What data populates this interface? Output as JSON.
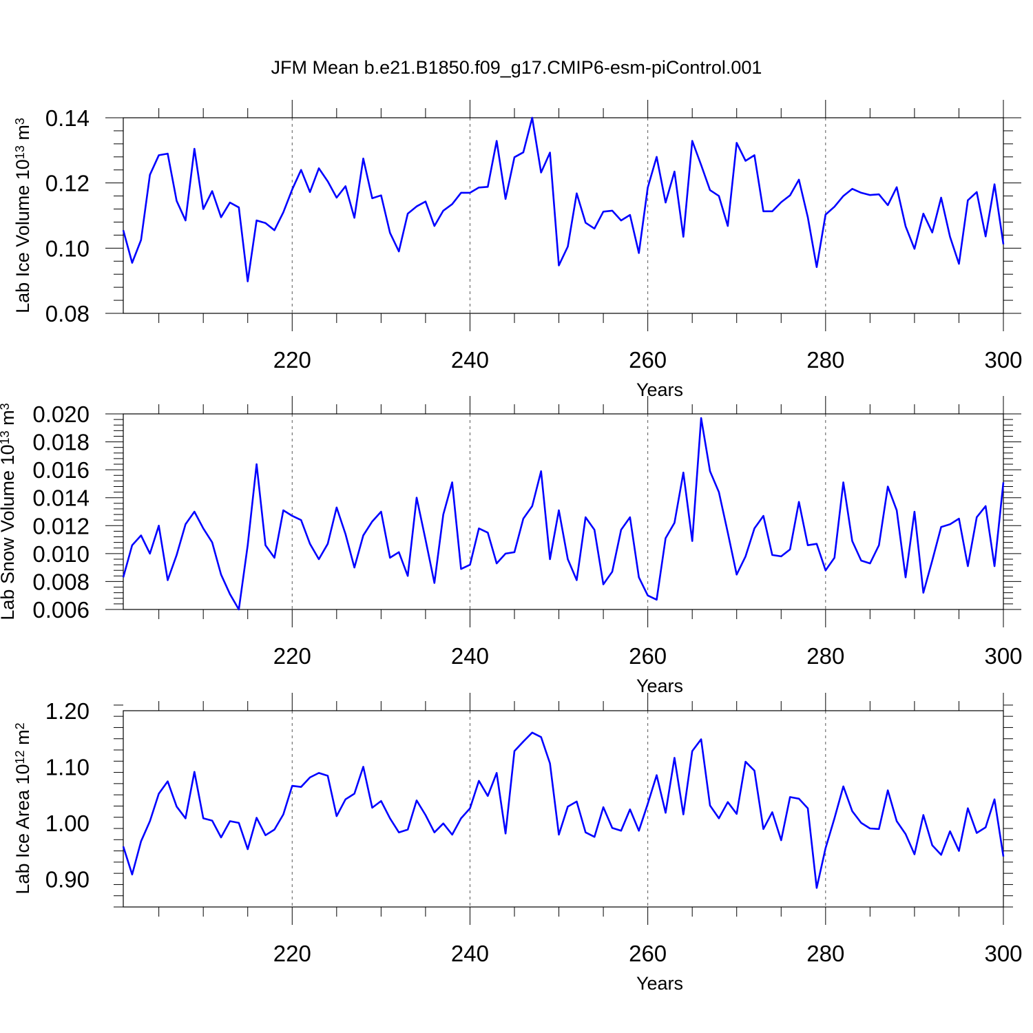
{
  "title": "JFM Mean b.e21.B1850.f09_g17.CMIP6-esm-piControl.001",
  "colors": {
    "line": "#0000ff",
    "axis": "#000000",
    "grid": "#555555"
  },
  "chart_data": [
    {
      "type": "line",
      "xlabel": "Years",
      "ylabel_main": "Lab Ice Volume 10",
      "ylabel_exp": "13",
      "ylabel_unit": " m",
      "ylabel_unit_exp": "3",
      "xlim": [
        201,
        300
      ],
      "ylim": [
        0.08,
        0.14
      ],
      "xticks": [
        220,
        240,
        260,
        280,
        300
      ],
      "xtick_labels": [
        "220",
        "240",
        "260",
        "280",
        "300"
      ],
      "yticks": [
        0.08,
        0.1,
        0.12,
        0.14
      ],
      "ytick_labels": [
        "0.08",
        "0.10",
        "0.12",
        "0.14"
      ],
      "grid_x": [
        220,
        240,
        260,
        280
      ],
      "x_start": 201,
      "values": [
        0.1055,
        0.0955,
        0.1025,
        0.1225,
        0.1285,
        0.129,
        0.1145,
        0.1085,
        0.1305,
        0.112,
        0.1175,
        0.1095,
        0.114,
        0.1125,
        0.0898,
        0.1085,
        0.1077,
        0.1055,
        0.111,
        0.118,
        0.124,
        0.1172,
        0.1245,
        0.1205,
        0.1155,
        0.119,
        0.1093,
        0.1275,
        0.1153,
        0.1162,
        0.1047,
        0.099,
        0.1106,
        0.1128,
        0.1143,
        0.1068,
        0.1115,
        0.1135,
        0.117,
        0.117,
        0.1186,
        0.1188,
        0.1329,
        0.1151,
        0.1279,
        0.1294,
        0.14,
        0.1232,
        0.1293,
        0.0947,
        0.1005,
        0.1168,
        0.1078,
        0.106,
        0.1112,
        0.1115,
        0.1085,
        0.1102,
        0.0985,
        0.1186,
        0.128,
        0.114,
        0.1235,
        0.1035,
        0.1329,
        0.1255,
        0.1178,
        0.116,
        0.1068,
        0.1323,
        0.1268,
        0.1285,
        0.1113,
        0.1113,
        0.1141,
        0.1162,
        0.121,
        0.1095,
        0.0942,
        0.1103,
        0.1127,
        0.116,
        0.1182,
        0.117,
        0.1163,
        0.1165,
        0.1132,
        0.1187,
        0.1067,
        0.0998,
        0.1106,
        0.1048,
        0.1155,
        0.1035,
        0.0952,
        0.1147,
        0.1172,
        0.1036,
        0.1196,
        0.1012
      ]
    },
    {
      "type": "line",
      "xlabel": "Years",
      "ylabel_main": "Lab Snow Volume 10",
      "ylabel_exp": "13",
      "ylabel_unit": " m",
      "ylabel_unit_exp": "3",
      "xlim": [
        201,
        300
      ],
      "ylim": [
        0.006,
        0.02
      ],
      "xticks": [
        220,
        240,
        260,
        280,
        300
      ],
      "xtick_labels": [
        "220",
        "240",
        "260",
        "280",
        "300"
      ],
      "yticks": [
        0.006,
        0.008,
        0.01,
        0.012,
        0.014,
        0.016,
        0.018,
        0.02
      ],
      "ytick_labels": [
        "0.006",
        "0.008",
        "0.010",
        "0.012",
        "0.014",
        "0.016",
        "0.018",
        "0.020"
      ],
      "grid_x": [
        220,
        240,
        260,
        280
      ],
      "x_start": 201,
      "values": [
        0.0083,
        0.0106,
        0.0113,
        0.01,
        0.012,
        0.0081,
        0.0099,
        0.0121,
        0.013,
        0.0118,
        0.0108,
        0.0085,
        0.0071,
        0.006,
        0.0106,
        0.0164,
        0.0106,
        0.0097,
        0.0131,
        0.0127,
        0.0124,
        0.0107,
        0.0096,
        0.0107,
        0.0133,
        0.0114,
        0.009,
        0.0113,
        0.0123,
        0.013,
        0.0097,
        0.0101,
        0.0084,
        0.014,
        0.011,
        0.0079,
        0.0128,
        0.0151,
        0.0089,
        0.0092,
        0.0118,
        0.0115,
        0.0093,
        0.01,
        0.0101,
        0.0125,
        0.0134,
        0.0159,
        0.0096,
        0.0131,
        0.0096,
        0.0081,
        0.0126,
        0.0117,
        0.0078,
        0.0087,
        0.0117,
        0.0126,
        0.0083,
        0.007,
        0.0067,
        0.0111,
        0.0122,
        0.0158,
        0.0109,
        0.0197,
        0.0159,
        0.0144,
        0.0115,
        0.0085,
        0.0098,
        0.0118,
        0.0127,
        0.0099,
        0.0098,
        0.0103,
        0.0137,
        0.0106,
        0.0107,
        0.0088,
        0.0097,
        0.0151,
        0.0109,
        0.0095,
        0.0093,
        0.0106,
        0.0148,
        0.0131,
        0.0083,
        0.013,
        0.0072,
        0.0095,
        0.0119,
        0.0121,
        0.0125,
        0.0091,
        0.0126,
        0.0134,
        0.0091,
        0.0151
      ]
    },
    {
      "type": "line",
      "xlabel": "Years",
      "ylabel_main": "Lab Ice Area 10",
      "ylabel_exp": "12",
      "ylabel_unit": " m",
      "ylabel_unit_exp": "2",
      "xlim": [
        201,
        300
      ],
      "ylim": [
        0.85,
        1.2
      ],
      "xticks": [
        220,
        240,
        260,
        280,
        300
      ],
      "xtick_labels": [
        "220",
        "240",
        "260",
        "280",
        "300"
      ],
      "yticks": [
        0.9,
        1.0,
        1.1,
        1.2
      ],
      "ytick_labels": [
        "0.90",
        "1.00",
        "1.10",
        "1.20"
      ],
      "grid_x": [
        220,
        240,
        260,
        280
      ],
      "x_start": 201,
      "values": [
        0.958,
        0.908,
        0.967,
        1.003,
        1.052,
        1.074,
        1.029,
        1.008,
        1.091,
        1.008,
        1.004,
        0.974,
        1.003,
        1.0,
        0.953,
        1.009,
        0.978,
        0.988,
        1.015,
        1.066,
        1.064,
        1.081,
        1.089,
        1.084,
        1.012,
        1.042,
        1.052,
        1.1,
        1.027,
        1.039,
        1.008,
        0.983,
        0.988,
        1.04,
        1.014,
        0.983,
        0.999,
        0.979,
        1.008,
        1.026,
        1.075,
        1.048,
        1.089,
        0.981,
        1.128,
        1.145,
        1.161,
        1.153,
        1.106,
        0.979,
        1.029,
        1.038,
        0.983,
        0.975,
        1.028,
        0.991,
        0.986,
        1.024,
        0.986,
        1.034,
        1.085,
        1.018,
        1.116,
        1.015,
        1.128,
        1.149,
        1.031,
        1.008,
        1.037,
        1.016,
        1.109,
        1.093,
        0.989,
        1.019,
        0.969,
        1.046,
        1.043,
        1.026,
        0.884,
        0.955,
        1.008,
        1.065,
        1.021,
        1.0,
        0.99,
        0.989,
        1.058,
        1.003,
        0.98,
        0.944,
        1.014,
        0.96,
        0.943,
        0.985,
        0.95,
        1.026,
        0.982,
        0.992,
        1.042,
        0.94
      ]
    }
  ]
}
